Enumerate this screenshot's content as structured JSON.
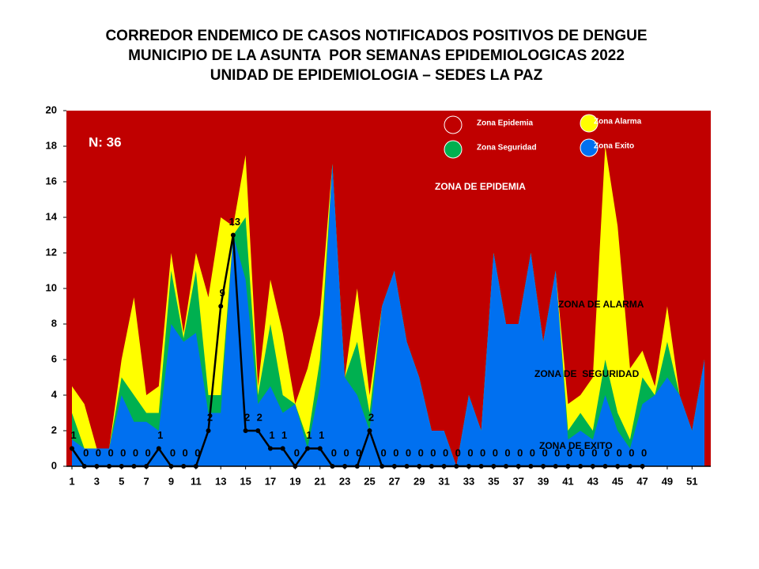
{
  "chart_data": {
    "type": "area",
    "title": [
      "CORREDOR ENDEMICO DE CASOS NOTIFICADOS POSITIVOS DE DENGUE",
      "MUNICIPIO DE LA ASUNTA  POR SEMANAS EPIDEMIOLOGICAS 2022",
      "UNIDAD DE EPIDEMIOLOGIA – SEDES LA PAZ"
    ],
    "x": [
      1,
      2,
      3,
      4,
      5,
      6,
      7,
      8,
      9,
      10,
      11,
      12,
      13,
      14,
      15,
      16,
      17,
      18,
      19,
      20,
      21,
      22,
      23,
      24,
      25,
      26,
      27,
      28,
      29,
      30,
      31,
      32,
      33,
      34,
      35,
      36,
      37,
      38,
      39,
      40,
      41,
      42,
      43,
      44,
      45,
      46,
      47,
      48,
      49,
      50,
      51,
      52
    ],
    "xlim": [
      1,
      52
    ],
    "xticks": [
      1,
      3,
      5,
      7,
      9,
      11,
      13,
      15,
      17,
      19,
      21,
      23,
      25,
      27,
      29,
      31,
      33,
      35,
      37,
      39,
      41,
      43,
      45,
      47,
      49,
      51
    ],
    "ylim": [
      0,
      20
    ],
    "yticks": [
      0,
      2,
      4,
      6,
      8,
      10,
      12,
      14,
      16,
      18,
      20
    ],
    "epidemia": {
      "name": "Zona Epidemia",
      "color": "#c00000"
    },
    "series": [
      {
        "name": "Zona Alarma",
        "color": "#ffff00",
        "values": [
          4.5,
          3.5,
          1,
          1,
          6,
          9.5,
          4,
          4.5,
          12,
          7.5,
          12,
          9.5,
          14,
          13.5,
          17.5,
          4.5,
          10.5,
          7.5,
          3.5,
          5.5,
          8.5,
          17,
          5,
          10,
          4,
          9,
          11,
          7,
          5,
          2,
          2,
          0,
          4,
          2,
          12,
          8,
          8,
          12,
          7,
          11,
          3.5,
          4,
          5,
          18,
          13.5,
          5.5,
          6.5,
          4.5,
          9,
          4,
          2,
          6
        ]
      },
      {
        "name": "Zona Seguridad",
        "color": "#00b050",
        "values": [
          3,
          1,
          1,
          1,
          5,
          4,
          3,
          3,
          11,
          7.2,
          11,
          4,
          4,
          13,
          14,
          4,
          8,
          4,
          3.5,
          1.5,
          6,
          17,
          5,
          7,
          3,
          9,
          11,
          7,
          5,
          2,
          2,
          0,
          4,
          2,
          12,
          8,
          8,
          12,
          7,
          11,
          2,
          3,
          2,
          6,
          3,
          1.5,
          5,
          4,
          7,
          4,
          2,
          6
        ]
      },
      {
        "name": "Zona Exito",
        "color": "#0070f0",
        "values": [
          1.5,
          1,
          1,
          1,
          4,
          2.5,
          2.5,
          2,
          8,
          7,
          7.5,
          3,
          3,
          13,
          10.5,
          3.5,
          4.5,
          3,
          3.5,
          1,
          4.5,
          17,
          5,
          4,
          2,
          9,
          11,
          7,
          5,
          2,
          2,
          0,
          4,
          2,
          12,
          8,
          8,
          12,
          7,
          11,
          1.5,
          2,
          1.5,
          4,
          2,
          1,
          3.5,
          4,
          5,
          4,
          2,
          6
        ]
      }
    ],
    "cases": {
      "color": "#000000",
      "values": [
        1,
        0,
        0,
        0,
        0,
        0,
        0,
        1,
        0,
        0,
        0,
        2,
        9,
        13,
        2,
        2,
        1,
        1,
        0,
        1,
        1,
        0,
        0,
        0,
        2,
        0,
        0,
        0,
        0,
        0,
        0,
        0,
        0,
        0,
        0,
        0,
        0,
        0,
        0,
        0,
        0,
        0,
        0,
        0,
        0,
        0,
        0,
        null,
        null,
        null,
        null,
        null
      ]
    },
    "annotations": [
      "N: 36",
      "ZONA DE EPIDEMIA",
      "ZONA DE ALARMA",
      "ZONA DE  SEGURIDAD",
      "ZONA DE EXITO"
    ]
  }
}
